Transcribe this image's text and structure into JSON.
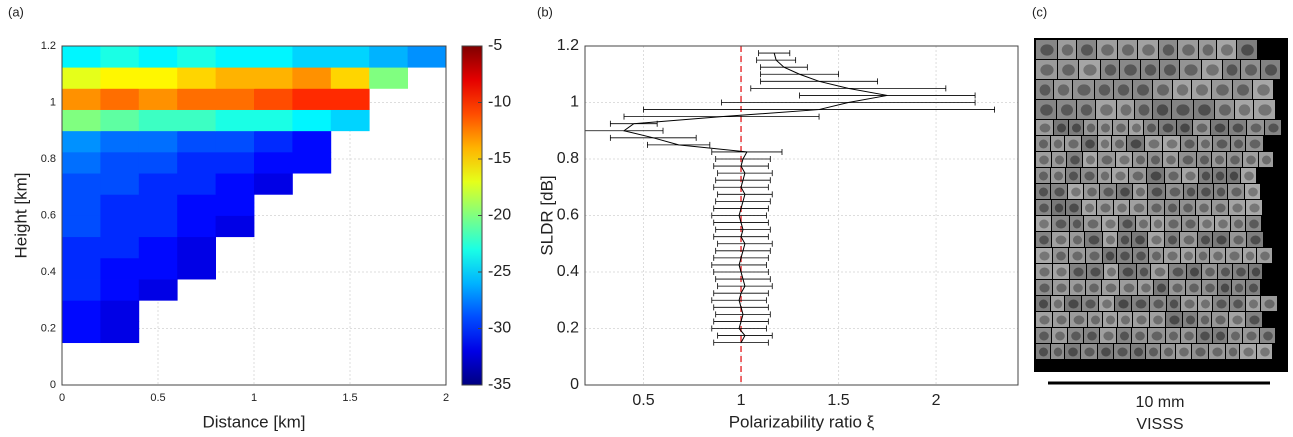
{
  "chart_data": [
    {
      "type": "heatmap",
      "label": "(a)",
      "xlabel": "Distance [km]",
      "ylabel": "Height [km]",
      "x_edges": [
        0,
        0.2,
        0.4,
        0.6,
        0.8,
        1.0,
        1.2,
        1.4,
        1.6,
        1.8,
        2.0
      ],
      "y_edges": [
        0.15,
        0.225,
        0.3,
        0.375,
        0.45,
        0.525,
        0.6,
        0.675,
        0.75,
        0.825,
        0.9,
        0.975,
        1.05,
        1.125,
        1.2
      ],
      "z": [
        [
          -31,
          -32,
          null,
          null,
          null,
          null,
          null,
          null,
          null,
          null
        ],
        [
          -31,
          -32,
          null,
          null,
          null,
          null,
          null,
          null,
          null,
          null
        ],
        [
          -30,
          -31,
          -32,
          null,
          null,
          null,
          null,
          null,
          null,
          null
        ],
        [
          -30,
          -31,
          -31,
          -32,
          null,
          null,
          null,
          null,
          null,
          null
        ],
        [
          -30,
          -30,
          -31,
          -32,
          null,
          null,
          null,
          null,
          null,
          null
        ],
        [
          -29,
          -30,
          -30,
          -31,
          -32,
          null,
          null,
          null,
          null,
          null
        ],
        [
          -29,
          -30,
          -30,
          -31,
          -31,
          null,
          null,
          null,
          null,
          null
        ],
        [
          -29,
          -29,
          -30,
          -30,
          -31,
          -32,
          null,
          null,
          null,
          null
        ],
        [
          -28,
          -29,
          -29,
          -30,
          -30,
          -31,
          -31,
          null,
          null,
          null
        ],
        [
          -27,
          -28,
          -28,
          -29,
          -29,
          -30,
          -31,
          null,
          null,
          null
        ],
        [
          -20,
          -21,
          -22,
          -22,
          -23,
          -23,
          -24,
          -25,
          null,
          null
        ],
        [
          -13,
          -12,
          -13,
          -12,
          -12,
          -11,
          -10,
          -10,
          null,
          null
        ],
        [
          -17,
          -16,
          -16,
          -15,
          -14,
          -14,
          -13,
          -15,
          -20,
          null
        ],
        [
          -24,
          -23,
          -24,
          -23,
          -24,
          -24,
          -25,
          -25,
          -26,
          -27
        ]
      ],
      "colormap": "jet",
      "clim": [
        -35,
        -5
      ],
      "cticks": [
        -35,
        -30,
        -25,
        -20,
        -15,
        -10,
        -5
      ],
      "xlim": [
        0,
        2
      ],
      "xticks": [
        0,
        0.5,
        1,
        1.5,
        2
      ],
      "ylim": [
        0,
        1.2
      ],
      "yticks": [
        0,
        0.2,
        0.4,
        0.6,
        0.8,
        1,
        1.2
      ],
      "grid": true
    },
    {
      "type": "profile",
      "label": "(b)",
      "xlabel": "Polarizability ratio ξ",
      "ylabel": "SLDR [dB]",
      "series": [
        {
          "color": "#000000",
          "y": [
            0.15,
            0.175,
            0.2,
            0.225,
            0.25,
            0.275,
            0.3,
            0.325,
            0.35,
            0.375,
            0.4,
            0.425,
            0.45,
            0.475,
            0.5,
            0.525,
            0.55,
            0.575,
            0.6,
            0.625,
            0.65,
            0.675,
            0.7,
            0.725,
            0.75,
            0.775,
            0.8,
            0.825,
            0.85,
            0.875,
            0.9,
            0.925,
            0.95,
            0.975,
            1.0,
            1.025,
            1.05,
            1.075,
            1.1,
            1.125,
            1.15,
            1.175
          ],
          "x": [
            1.0,
            1.02,
            0.99,
            1.0,
            1.01,
            1.0,
            0.99,
            1.0,
            1.02,
            1.01,
            1.0,
            0.99,
            1.0,
            1.01,
            1.02,
            1.0,
            1.01,
            1.0,
            0.99,
            1.0,
            1.01,
            1.02,
            1.0,
            1.01,
            1.02,
            1.0,
            1.01,
            1.03,
            0.68,
            0.55,
            0.4,
            0.45,
            0.9,
            1.4,
            1.55,
            1.75,
            1.55,
            1.4,
            1.3,
            1.22,
            1.18,
            1.17
          ],
          "xerr": [
            0.14,
            0.14,
            0.14,
            0.14,
            0.14,
            0.14,
            0.14,
            0.14,
            0.14,
            0.14,
            0.14,
            0.14,
            0.14,
            0.14,
            0.14,
            0.14,
            0.14,
            0.14,
            0.14,
            0.14,
            0.14,
            0.14,
            0.14,
            0.14,
            0.14,
            0.14,
            0.14,
            0.18,
            0.16,
            0.22,
            0.2,
            0.12,
            0.5,
            0.9,
            0.65,
            0.45,
            0.5,
            0.3,
            0.2,
            0.12,
            0.1,
            0.08
          ]
        }
      ],
      "ref_line": {
        "x": 1,
        "color": "#e8383a"
      },
      "xlim": [
        0.2,
        2.42
      ],
      "xticks": [
        0.5,
        1,
        1.5,
        2
      ],
      "ylim": [
        0,
        1.2
      ],
      "yticks": [
        0,
        0.2,
        0.4,
        0.6,
        0.8,
        1,
        1.2
      ],
      "grid": true
    }
  ],
  "image_panel": {
    "label": "(c)",
    "scale_bar": "10 mm",
    "caption": "VISSS"
  }
}
